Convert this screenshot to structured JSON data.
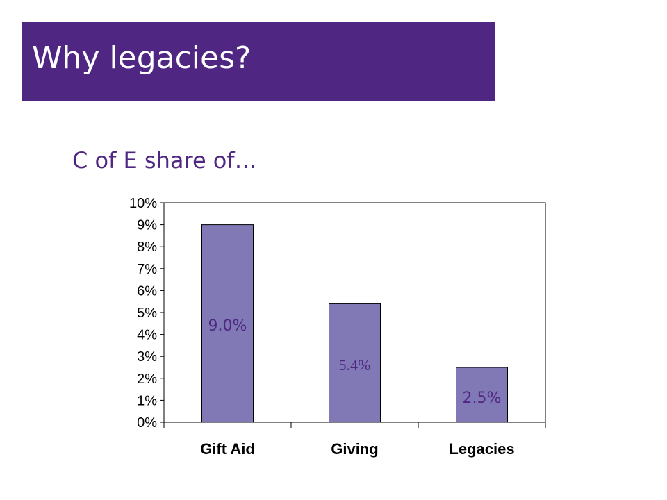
{
  "slide": {
    "title": "Why legacies?",
    "subtitle": "C of E share of…"
  },
  "colors": {
    "title_bg": "#4f2782",
    "bar_fill": "#8079b6",
    "label_color": "#4f2782"
  },
  "chart_data": {
    "type": "bar",
    "categories": [
      "Gift Aid",
      "Giving",
      "Legacies"
    ],
    "values": [
      9.0,
      5.4,
      2.5
    ],
    "data_labels": [
      "9.0%",
      "5.4%",
      "2.5%"
    ],
    "ylim": [
      0,
      10
    ],
    "yticks": [
      "0%",
      "1%",
      "2%",
      "3%",
      "4%",
      "5%",
      "6%",
      "7%",
      "8%",
      "9%",
      "10%"
    ],
    "grid": false,
    "legend": "none"
  }
}
